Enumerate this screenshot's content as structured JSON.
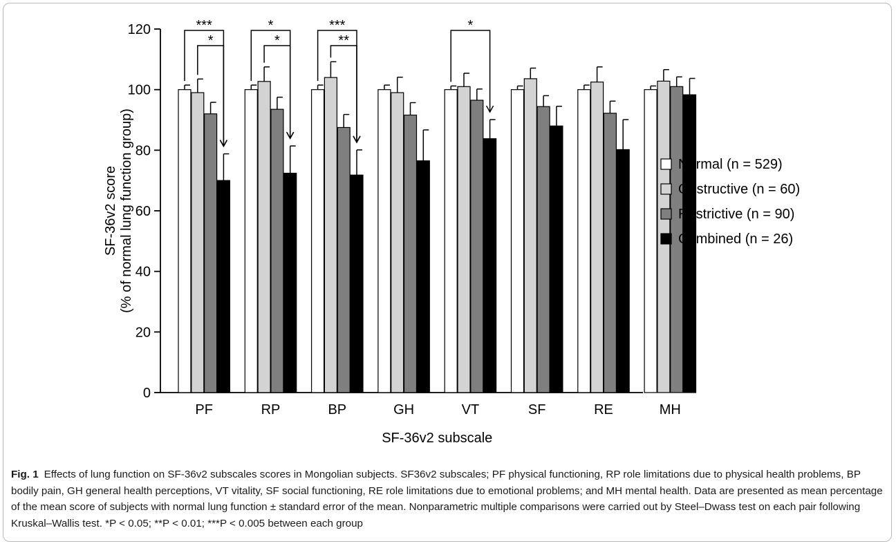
{
  "chart_data": {
    "type": "bar",
    "categories": [
      "PF",
      "RP",
      "BP",
      "GH",
      "VT",
      "SF",
      "RE",
      "MH"
    ],
    "series": [
      {
        "name": "Normal (n = 529)",
        "color": "#ffffff",
        "values": [
          100,
          100,
          100,
          100,
          100,
          100,
          100,
          100
        ],
        "errors": [
          1.5,
          1.5,
          1.5,
          1.5,
          1.2,
          1.2,
          1.5,
          1.2
        ]
      },
      {
        "name": "Obstructive (n = 60)",
        "color": "#d3d3d3",
        "values": [
          99,
          102.7,
          104,
          99,
          101,
          103.6,
          102.5,
          102.8
        ],
        "errors": [
          4.5,
          4.8,
          5.2,
          5.1,
          4.4,
          3.5,
          5.0,
          3.8
        ]
      },
      {
        "name": "Restrictive (n = 90)",
        "color": "#7f7f7f",
        "values": [
          92,
          93.5,
          87.5,
          91.6,
          96.5,
          94.4,
          92.2,
          101
        ],
        "errors": [
          3.8,
          4.0,
          4.3,
          4.1,
          3.7,
          3.6,
          4.0,
          3.2
        ]
      },
      {
        "name": "Combined (n = 26)",
        "color": "#000000",
        "values": [
          70,
          72.4,
          71.8,
          76.5,
          83.8,
          88,
          80.2,
          98.3
        ],
        "errors": [
          8.8,
          9.0,
          8.3,
          10.2,
          6.3,
          6.5,
          9.9,
          5.4
        ]
      }
    ],
    "ylabel_line1": "SF-36v2 score",
    "ylabel_line2": "(% of normal lung function group)",
    "xlabel": "SF-36v2 subscale",
    "ylim": [
      0,
      120
    ],
    "yticks": [
      0,
      20,
      40,
      60,
      80,
      100,
      120
    ],
    "grid": false,
    "legend_position": "right",
    "significance": [
      {
        "category": "PF",
        "from_series": 0,
        "to_series": 3,
        "label": "***",
        "level": 1
      },
      {
        "category": "PF",
        "from_series": 1,
        "to_series": 3,
        "label": "*",
        "level": 0
      },
      {
        "category": "RP",
        "from_series": 0,
        "to_series": 3,
        "label": "*",
        "level": 1
      },
      {
        "category": "RP",
        "from_series": 1,
        "to_series": 3,
        "label": "*",
        "level": 0
      },
      {
        "category": "BP",
        "from_series": 0,
        "to_series": 3,
        "label": "***",
        "level": 1
      },
      {
        "category": "BP",
        "from_series": 1,
        "to_series": 3,
        "label": "**",
        "level": 0
      },
      {
        "category": "VT",
        "from_series": 0,
        "to_series": 3,
        "label": "*",
        "level": 1
      }
    ]
  },
  "caption": {
    "label": "Fig. 1",
    "text": "Effects of lung function on SF-36v2 subscales scores in Mongolian subjects. SF36v2 subscales; PF physical functioning, RP role limitations due to physical health problems, BP bodily pain, GH general health perceptions, VT vitality, SF social functioning, RE role limitations due to emotional problems; and MH mental health. Data are presented as mean percentage of the mean score of subjects with normal lung function ± standard error of the mean. Nonparametric multiple comparisons were carried out by Steel–Dwass test on each pair following Kruskal–Wallis test. *P < 0.05; **P < 0.01; ***P < 0.005 between each group"
  }
}
